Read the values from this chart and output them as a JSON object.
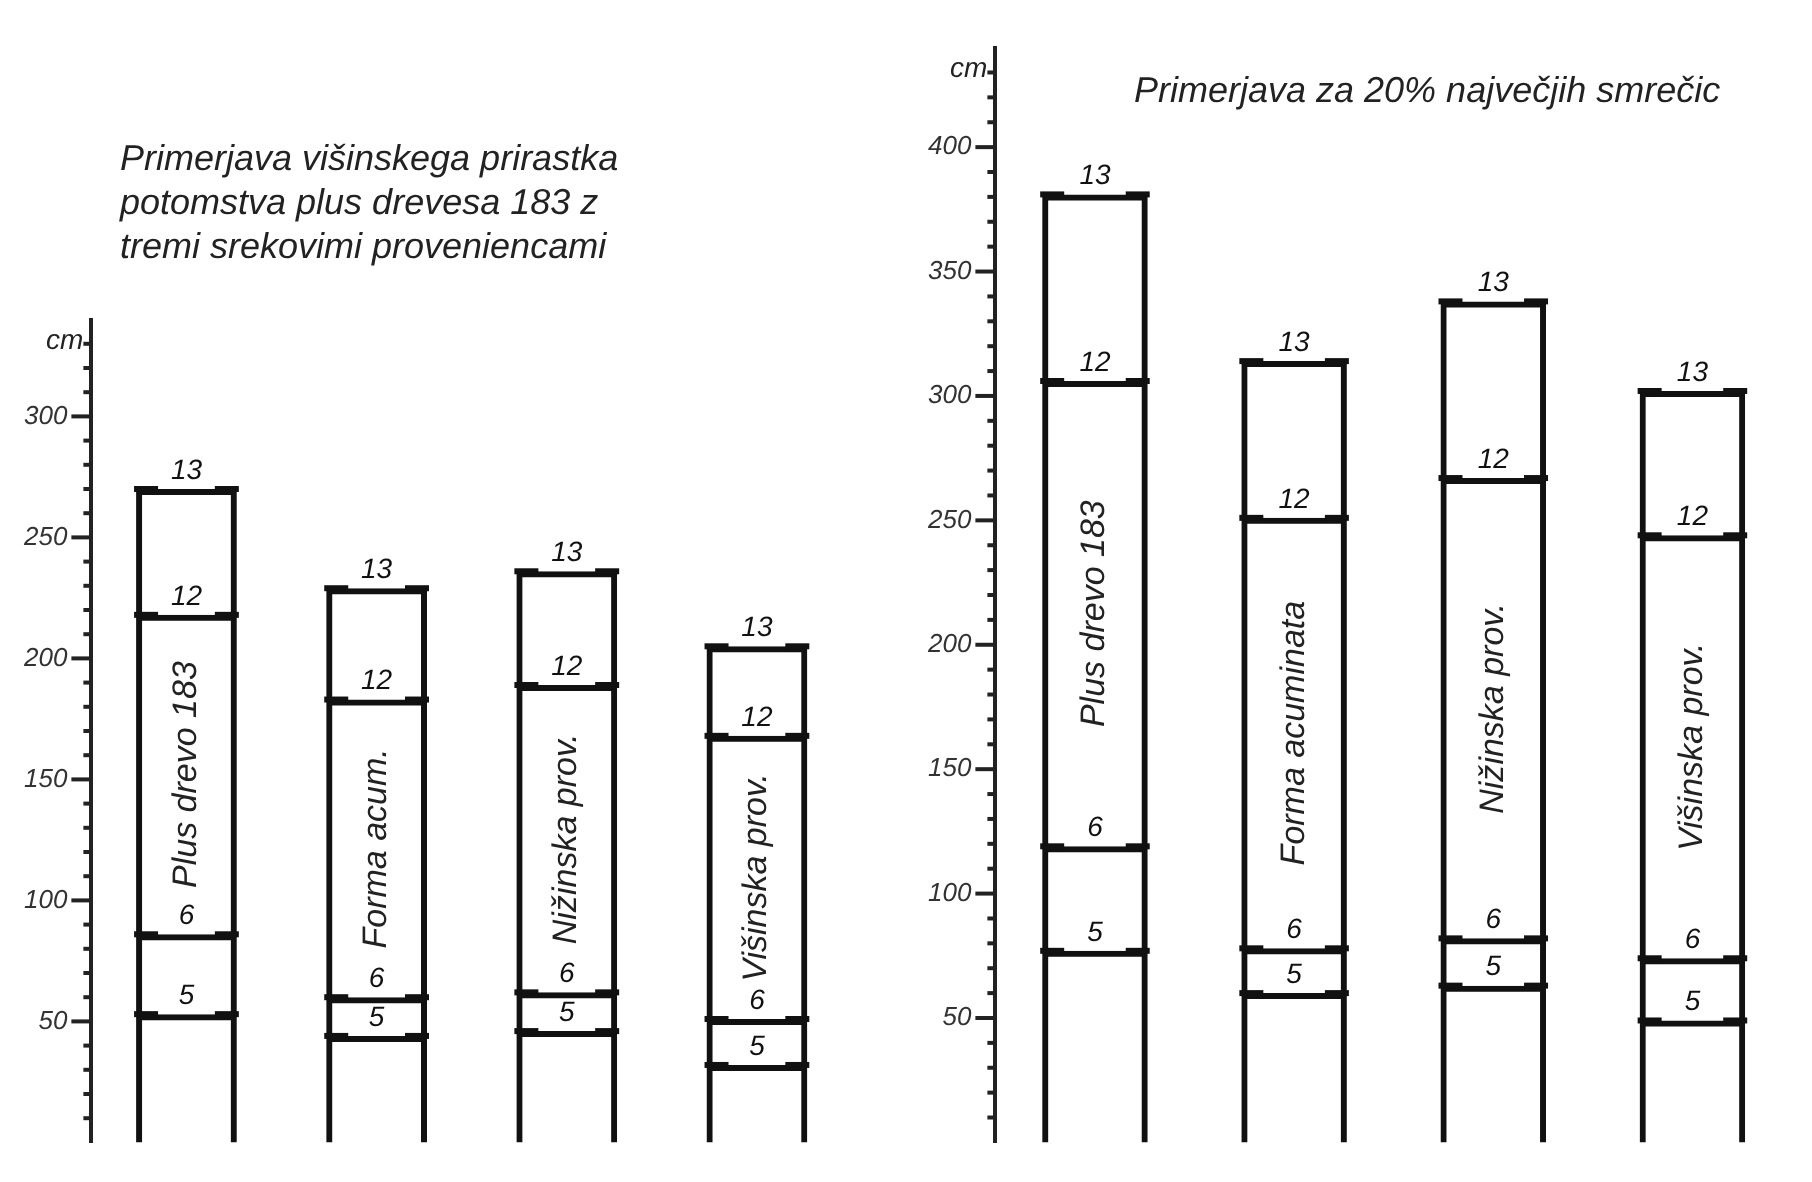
{
  "chart_data": [
    {
      "type": "bar",
      "title": "Primerjava višinskega prirastka potomstva plus drevesa 183 z tremi srekovimi proveniencami",
      "ylabel": "cm",
      "categories": [
        "Plus drevo 183",
        "Forma acum.",
        "Nižinska prov.",
        "Višinska prov."
      ],
      "stacked": true,
      "tick_labels": "y",
      "series": [
        {
          "name": "5",
          "color": "#111111",
          "values": [
            53,
            44,
            46,
            32
          ]
        },
        {
          "name": "6",
          "color": "#111111",
          "values": [
            33,
            16,
            16,
            19
          ]
        },
        {
          "name": "12",
          "color": "#111111",
          "values": [
            132,
            123,
            127,
            117
          ]
        },
        {
          "name": "13",
          "color": "#111111",
          "values": [
            52,
            46,
            47,
            37
          ]
        }
      ],
      "ylim": [
        0,
        340
      ],
      "yticks": [
        {
          "value": 10,
          "label": null
        },
        {
          "value": 20,
          "label": null
        },
        {
          "value": 30,
          "label": null
        },
        {
          "value": 40,
          "label": null
        },
        50,
        {
          "value": 60,
          "label": null
        },
        {
          "value": 70,
          "label": null
        },
        {
          "value": 80,
          "label": null
        },
        {
          "value": 90,
          "label": null
        },
        100,
        {
          "value": 110,
          "label": null
        },
        {
          "value": 120,
          "label": null
        },
        {
          "value": 130,
          "label": null
        },
        {
          "value": 140,
          "label": null
        },
        150,
        {
          "value": 160,
          "label": null
        },
        {
          "value": 170,
          "label": null
        },
        {
          "value": 180,
          "label": null
        },
        {
          "value": 190,
          "label": null
        },
        200,
        {
          "value": 210,
          "label": null
        },
        {
          "value": 220,
          "label": null
        },
        {
          "value": 230,
          "label": null
        },
        {
          "value": 240,
          "label": null
        },
        250,
        {
          "value": 260,
          "label": null
        },
        {
          "value": 270,
          "label": null
        },
        {
          "value": 280,
          "label": null
        },
        {
          "value": 290,
          "label": null
        },
        300,
        {
          "value": 310,
          "label": null
        },
        {
          "value": 320,
          "label": null
        },
        {
          "value": 330,
          "label": null
        }
      ]
    },
    {
      "type": "bar",
      "title": "Primerjava za 20% največjih smrečic",
      "ylabel": "cm",
      "categories": [
        "Plus drevo 183",
        "Forma acuminata",
        "Nižinska prov.",
        "Višinska prov."
      ],
      "stacked": true,
      "tick_labels": "y",
      "series": [
        {
          "name": "5",
          "color": "#111111",
          "values": [
            77,
            60,
            63,
            49
          ]
        },
        {
          "name": "6",
          "color": "#111111",
          "values": [
            42,
            18,
            19,
            25
          ]
        },
        {
          "name": "12",
          "color": "#111111",
          "values": [
            187,
            173,
            185,
            170
          ]
        },
        {
          "name": "13",
          "color": "#111111",
          "values": [
            75,
            63,
            71,
            58
          ]
        }
      ],
      "ylim": [
        0,
        440
      ],
      "yticks": [
        {
          "value": 10,
          "label": null
        },
        {
          "value": 20,
          "label": null
        },
        {
          "value": 30,
          "label": null
        },
        {
          "value": 40,
          "label": null
        },
        50,
        {
          "value": 60,
          "label": null
        },
        {
          "value": 70,
          "label": null
        },
        {
          "value": 80,
          "label": null
        },
        {
          "value": 90,
          "label": null
        },
        100,
        {
          "value": 110,
          "label": null
        },
        {
          "value": 120,
          "label": null
        },
        {
          "value": 130,
          "label": null
        },
        {
          "value": 140,
          "label": null
        },
        150,
        {
          "value": 160,
          "label": null
        },
        {
          "value": 170,
          "label": null
        },
        {
          "value": 180,
          "label": null
        },
        {
          "value": 190,
          "label": null
        },
        200,
        {
          "value": 210,
          "label": null
        },
        {
          "value": 220,
          "label": null
        },
        {
          "value": 230,
          "label": null
        },
        {
          "value": 240,
          "label": null
        },
        250,
        {
          "value": 260,
          "label": null
        },
        {
          "value": 270,
          "label": null
        },
        {
          "value": 280,
          "label": null
        },
        {
          "value": 290,
          "label": null
        },
        300,
        {
          "value": 310,
          "label": null
        },
        {
          "value": 320,
          "label": null
        },
        {
          "value": 330,
          "label": null
        },
        {
          "value": 340,
          "label": null
        },
        350,
        {
          "value": 360,
          "label": null
        },
        {
          "value": 370,
          "label": null
        },
        {
          "value": 380,
          "label": null
        },
        {
          "value": 390,
          "label": null
        },
        400,
        {
          "value": 410,
          "label": null
        },
        {
          "value": 420,
          "label": null
        },
        {
          "value": 430,
          "label": null
        }
      ]
    }
  ]
}
